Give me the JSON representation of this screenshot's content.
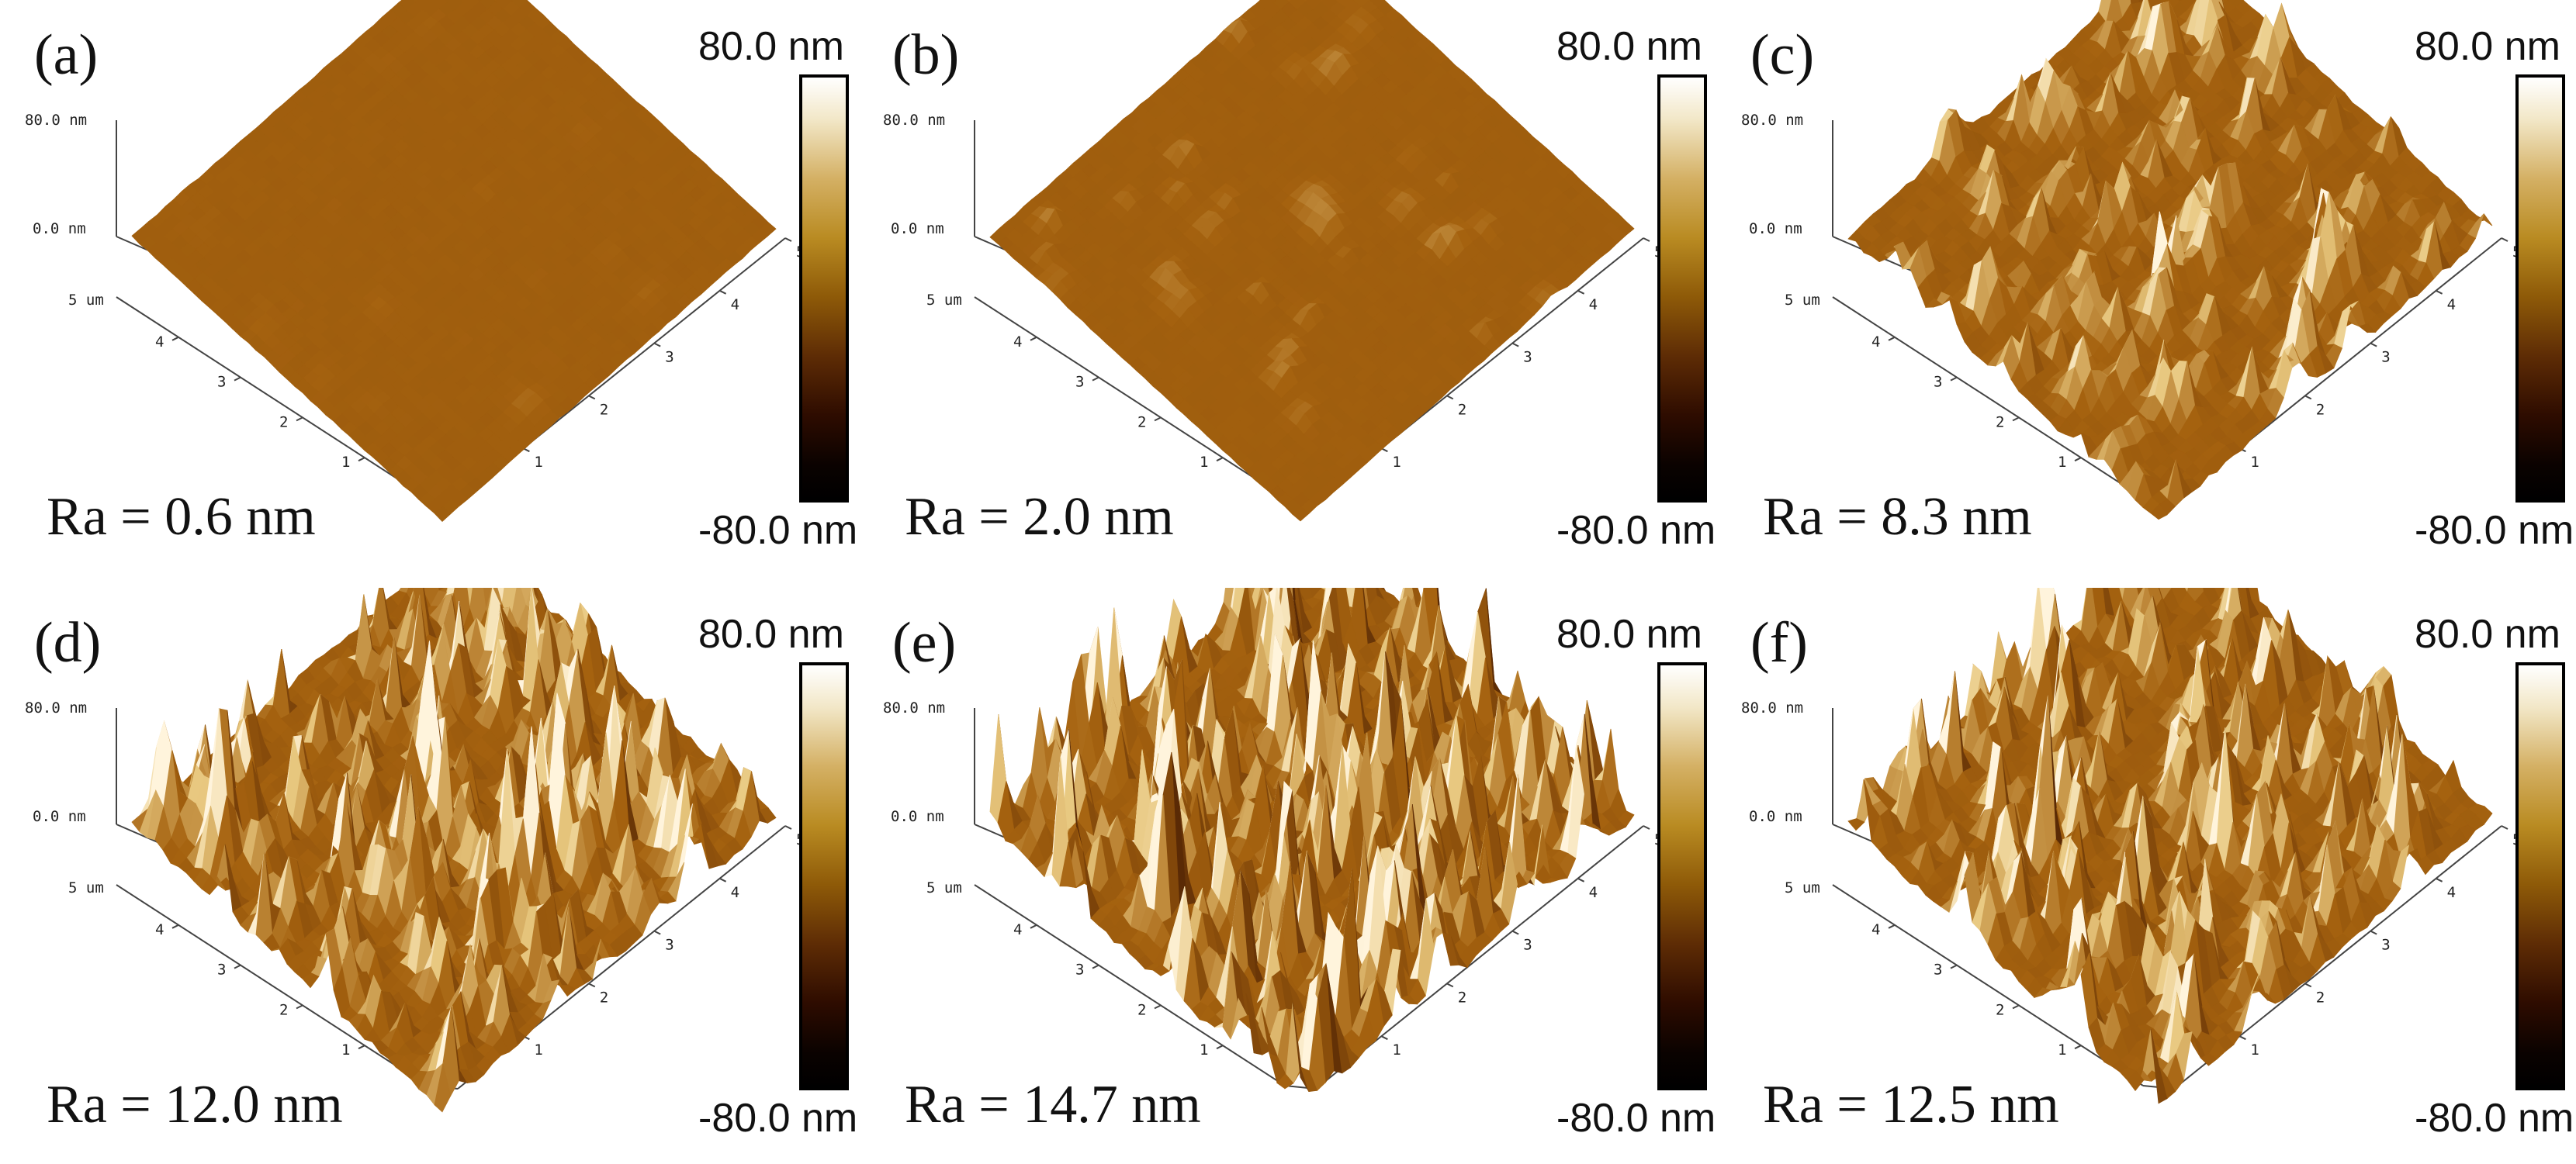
{
  "figure": {
    "colorbar": {
      "max_label": "80.0 nm",
      "min_label": "-80.0 nm"
    },
    "axis_labels": {
      "z_top": "80.0 nm",
      "z_zero": "0.0 nm",
      "y_top": "5 um",
      "ticks": [
        "1",
        "2",
        "3",
        "4",
        "5"
      ]
    },
    "panels": [
      {
        "id": "a",
        "label": "(a)",
        "ra": "Ra = 0.6 nm",
        "roughness": 0.03,
        "spikiness": 0.0
      },
      {
        "id": "b",
        "label": "(b)",
        "ra": "Ra = 2.0 nm",
        "roughness": 0.12,
        "spikiness": 0.05
      },
      {
        "id": "c",
        "label": "(c)",
        "ra": "Ra = 8.3 nm",
        "roughness": 0.55,
        "spikiness": 0.35
      },
      {
        "id": "d",
        "label": "(d)",
        "ra": "Ra = 12.0 nm",
        "roughness": 0.8,
        "spikiness": 0.7
      },
      {
        "id": "e",
        "label": "(e)",
        "ra": "Ra = 14.7 nm",
        "roughness": 1.0,
        "spikiness": 0.95
      },
      {
        "id": "f",
        "label": "(f)",
        "ra": "Ra = 12.5 nm",
        "roughness": 0.75,
        "spikiness": 0.85
      }
    ],
    "colors": {
      "surface_dark": "#5a2a05",
      "surface_mid": "#a5620f",
      "surface_light": "#e8c880",
      "surface_peak": "#fff4dc"
    }
  }
}
